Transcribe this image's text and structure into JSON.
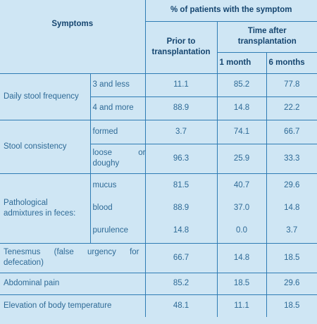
{
  "header": {
    "group": "% of patients with the symptom",
    "symptoms": "Symptoms",
    "prior": "Prior to transplantation",
    "time_after": "Time after transplantation",
    "month1": "1 month",
    "month6": "6 months"
  },
  "rows": {
    "daily_stool": {
      "label": "Daily stool frequency",
      "r1": {
        "sub": "3 and less",
        "prior": "11.1",
        "m1": "85.2",
        "m6": "77.8"
      },
      "r2": {
        "sub": "4 and more",
        "prior": "88.9",
        "m1": "14.8",
        "m6": "22.2"
      }
    },
    "consistency": {
      "label": "Stool consistency",
      "r1": {
        "sub": "formed",
        "prior": "3.7",
        "m1": "74.1",
        "m6": "66.7"
      },
      "r2": {
        "sub_a": "loose",
        "sub_b": "or",
        "sub_c": "doughy",
        "prior": "96.3",
        "m1": "25.9",
        "m6": "33.3"
      }
    },
    "admixtures": {
      "label": "Pathological admixtures in feces:",
      "r1": {
        "sub": "mucus",
        "prior": "81.5",
        "m1": "40.7",
        "m6": "29.6"
      },
      "r2": {
        "sub": "blood",
        "prior": "88.9",
        "m1": "37.0",
        "m6": "14.8"
      },
      "r3": {
        "sub": "purulence",
        "prior": "14.8",
        "m1": "0.0",
        "m6": "3.7"
      }
    },
    "tenesmus": {
      "label": "Tenesmus (false urgency for defecation)",
      "prior": "66.7",
      "m1": "14.8",
      "m6": "18.5"
    },
    "abdominal": {
      "label": "Abdominal pain",
      "prior": "85.2",
      "m1": "18.5",
      "m6": "29.6"
    },
    "temperature": {
      "label": "Elevation of body temperature",
      "prior": "48.1",
      "m1": "11.1",
      "m6": "18.5"
    }
  }
}
